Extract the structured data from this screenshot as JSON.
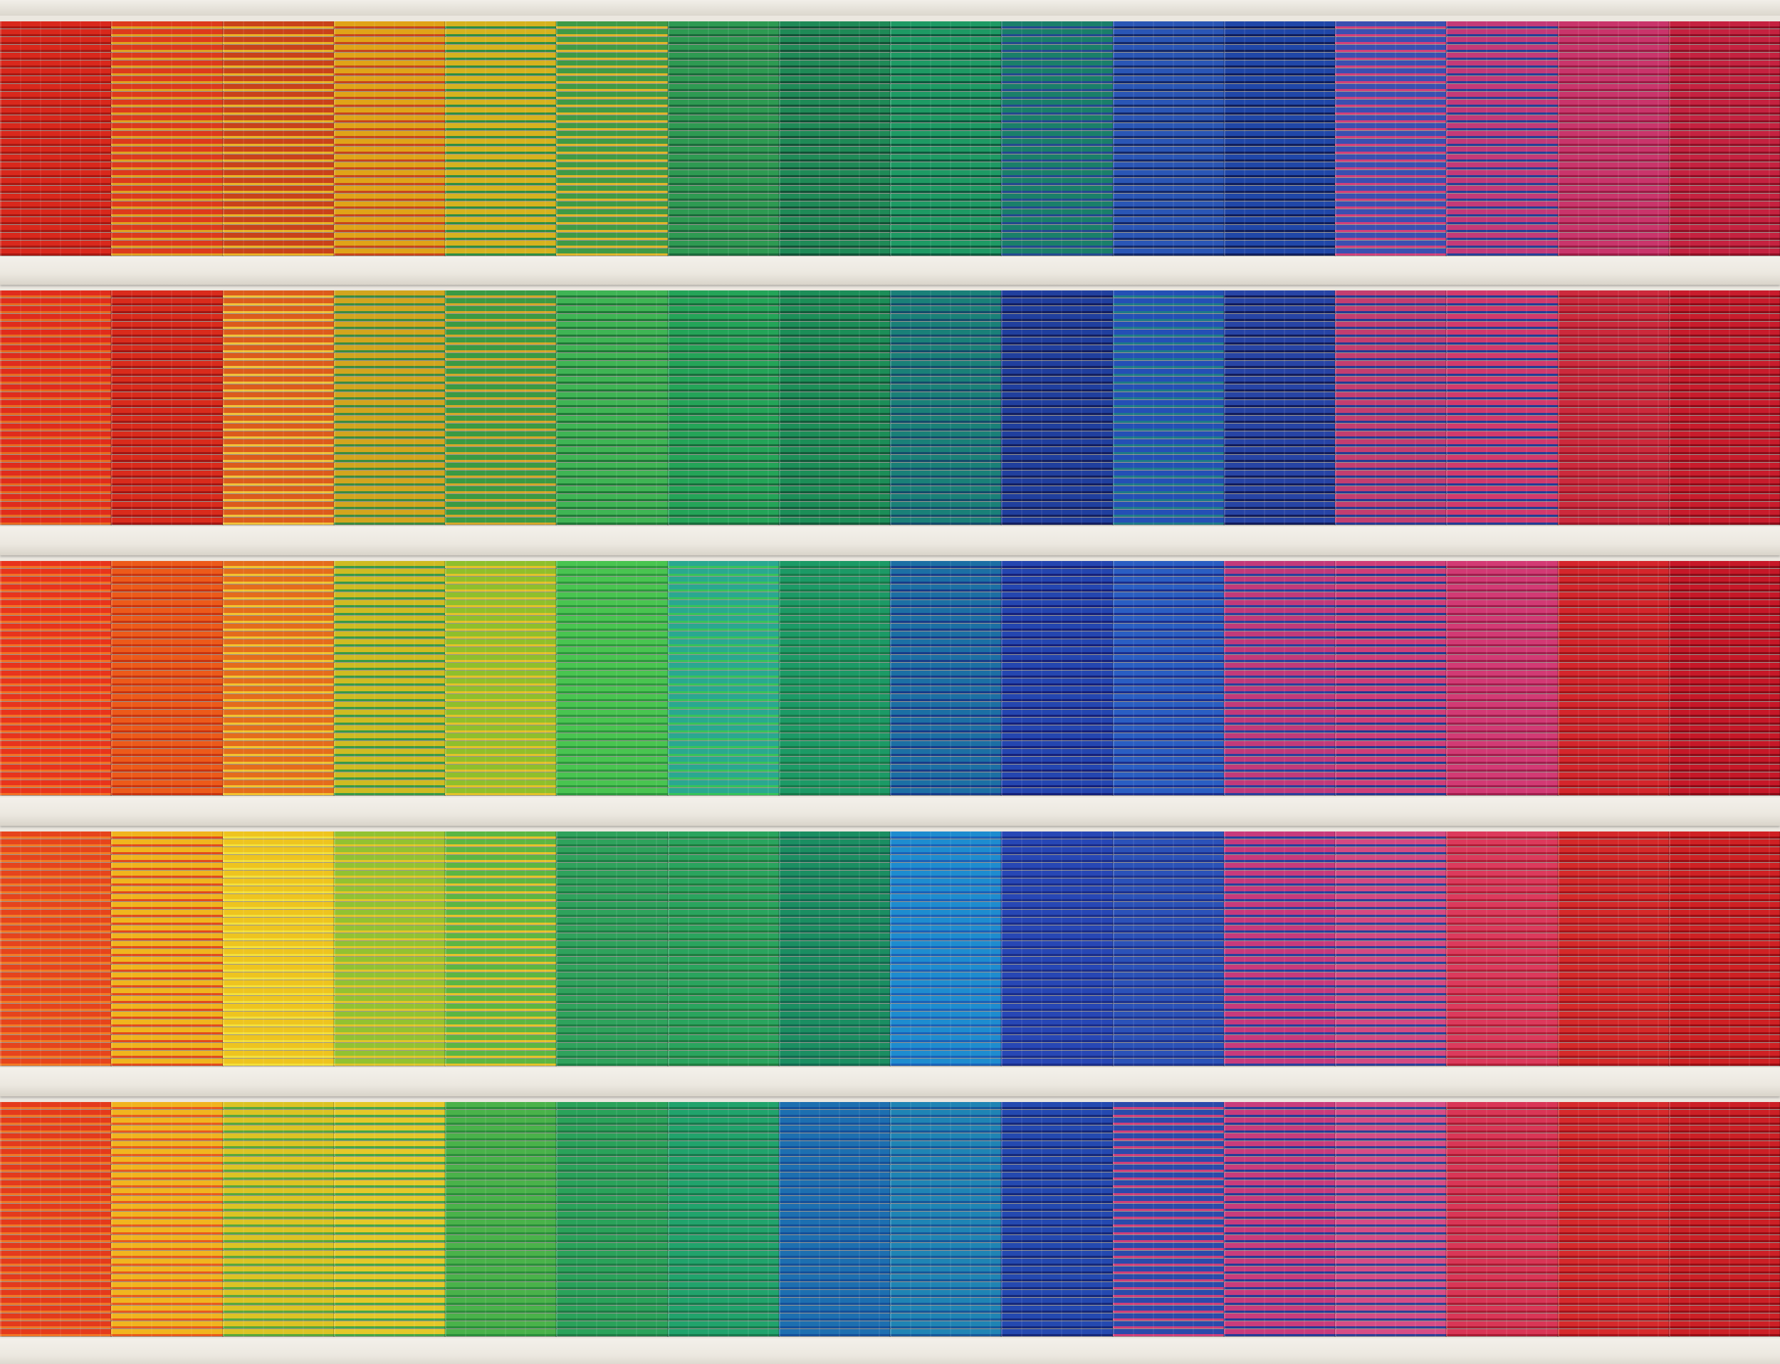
{
  "image": {
    "subject": "building-facade-with-rainbow-colored-venetian-blinds",
    "floors": [
      {
        "name": "floor-1",
        "panels": [
          [
            "#d9281c",
            "#a81811"
          ],
          [
            "#dd3a1c",
            "#e0a020"
          ],
          [
            "#c9421a",
            "#e9b227"
          ],
          [
            "#e0a318",
            "#c7451c"
          ],
          [
            "#d6b21f",
            "#2f8d43"
          ],
          [
            "#3f9a46",
            "#e0b52a"
          ],
          [
            "#2e9a52",
            "#1b6b3b"
          ],
          [
            "#1f8a57",
            "#115236"
          ],
          [
            "#1e9a64",
            "#0d5a3e"
          ],
          [
            "#1a7f6a",
            "#23498f"
          ],
          [
            "#2a56b5",
            "#13286a"
          ],
          [
            "#2047a8",
            "#101e5b"
          ],
          [
            "#3b4fb0",
            "#d2407a"
          ],
          [
            "#c43a78",
            "#263f96"
          ],
          [
            "#c9356b",
            "#9c1b45"
          ],
          [
            "#c52240",
            "#8e0f24"
          ]
        ]
      },
      {
        "name": "floor-2",
        "panels": [
          [
            "#e02c1c",
            "#e86a20"
          ],
          [
            "#d92b1c",
            "#a21612"
          ],
          [
            "#dc5b1c",
            "#f0c13a"
          ],
          [
            "#d2a51e",
            "#3b8c3f"
          ],
          [
            "#3a9a44",
            "#d4a72a"
          ],
          [
            "#3fb454",
            "#1f7a36"
          ],
          [
            "#24a458",
            "#186e3c"
          ],
          [
            "#1c8e58",
            "#125b3a"
          ],
          [
            "#1a8078",
            "#134c6a"
          ],
          [
            "#203f9e",
            "#131f60"
          ],
          [
            "#2450b5",
            "#1d7a88"
          ],
          [
            "#2744a5",
            "#121c5a"
          ],
          [
            "#c33e70",
            "#243b94"
          ],
          [
            "#d23a6c",
            "#233c95"
          ],
          [
            "#cc2a3c",
            "#a01628"
          ],
          [
            "#c81c2c",
            "#8c0c18"
          ]
        ]
      },
      {
        "name": "floor-3",
        "panels": [
          [
            "#e8341c",
            "#f37024"
          ],
          [
            "#ec5a1a",
            "#c8340f"
          ],
          [
            "#e46c1c",
            "#f2c22f"
          ],
          [
            "#cfbb22",
            "#389a46"
          ],
          [
            "#8fbf2c",
            "#e2c229"
          ],
          [
            "#49c450",
            "#2d9a3c"
          ],
          [
            "#2aa890",
            "#37c25a"
          ],
          [
            "#1c9a66",
            "#167a4a"
          ],
          [
            "#1c6fa4",
            "#173d8a"
          ],
          [
            "#2446b0",
            "#15207a"
          ],
          [
            "#2a5ec2",
            "#1a2f8e"
          ],
          [
            "#c23a7a",
            "#2a3f9c"
          ],
          [
            "#cf3e78",
            "#23378f"
          ],
          [
            "#d23a74",
            "#a11e4d"
          ],
          [
            "#d4262c",
            "#a31418"
          ],
          [
            "#c61828",
            "#8a0b16"
          ]
        ]
      },
      {
        "name": "floor-4",
        "panels": [
          [
            "#e6441c",
            "#f27a26"
          ],
          [
            "#f0b41e",
            "#e24a1c"
          ],
          [
            "#eec41f",
            "#f3df3a"
          ],
          [
            "#92c232",
            "#e0c62a"
          ],
          [
            "#5cb643",
            "#e6c22a"
          ],
          [
            "#2fa25c",
            "#1d8045"
          ],
          [
            "#2aa45e",
            "#1e7e40"
          ],
          [
            "#1b8e62",
            "#126a4f"
          ],
          [
            "#1e8ccf",
            "#1a62b8"
          ],
          [
            "#2747b5",
            "#1a2d8a"
          ],
          [
            "#2b52b8",
            "#1d328e"
          ],
          [
            "#c83a7c",
            "#283f9c"
          ],
          [
            "#d44a82",
            "#2a3f98"
          ],
          [
            "#dc3a5c",
            "#b01f38"
          ],
          [
            "#d52a2a",
            "#a6141a"
          ],
          [
            "#cf2124",
            "#9a0d12"
          ]
        ]
      },
      {
        "name": "floor-5",
        "panels": [
          [
            "#e43a1c",
            "#f07626"
          ],
          [
            "#f1b41f",
            "#e85a1d"
          ],
          [
            "#dcc324",
            "#58a83c"
          ],
          [
            "#e4c829",
            "#44a646"
          ],
          [
            "#4ab24a",
            "#2b8f3a"
          ],
          [
            "#2aa25a",
            "#1e7c45"
          ],
          [
            "#21a36c",
            "#177a4d"
          ],
          [
            "#1d6fb0",
            "#14509a"
          ],
          [
            "#1f84b4",
            "#16589a"
          ],
          [
            "#2449b0",
            "#15287a"
          ],
          [
            "#2b4aaa",
            "#cf3f7a"
          ],
          [
            "#c93c7c",
            "#263b96"
          ],
          [
            "#d64d86",
            "#2e3f94"
          ],
          [
            "#d93656",
            "#a91c34"
          ],
          [
            "#d62a2c",
            "#a5131a"
          ],
          [
            "#cc2026",
            "#970d14"
          ]
        ]
      }
    ]
  }
}
